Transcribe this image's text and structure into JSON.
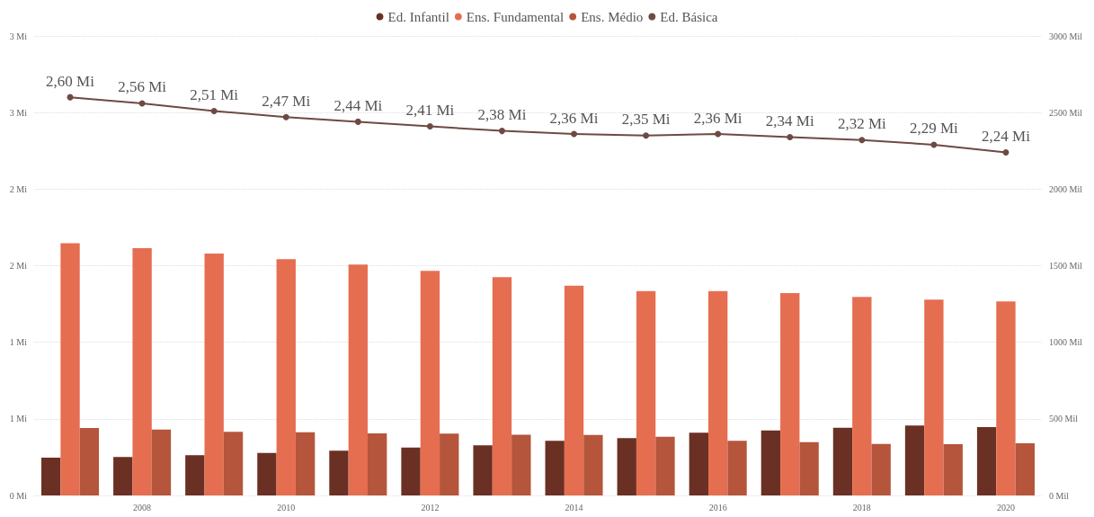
{
  "chart_data": {
    "type": "bar",
    "categories": [
      null,
      "2008",
      null,
      "2010",
      null,
      "2012",
      null,
      "2014",
      null,
      "2016",
      null,
      "2018",
      null,
      "2020"
    ],
    "series": [
      {
        "name": "Ed. Infantil",
        "color": "#6b3024",
        "axis": "y2",
        "values": [
          247,
          251,
          262,
          278,
          292,
          312,
          328,
          356,
          374,
          410,
          424,
          442,
          457,
          446
        ]
      },
      {
        "name": "Ens. Fundamental",
        "color": "#e56e50",
        "axis": "y2",
        "values": [
          1647,
          1615,
          1579,
          1543,
          1507,
          1466,
          1425,
          1370,
          1334,
          1334,
          1321,
          1296,
          1278,
          1267
        ]
      },
      {
        "name": "Ens. Médio",
        "color": "#b5553c",
        "axis": "y2",
        "values": [
          441,
          430,
          416,
          412,
          405,
          403,
          396,
          395,
          383,
          356,
          348,
          336,
          334,
          341
        ]
      },
      {
        "name": "Ed. Básica",
        "type": "line",
        "color": "#6e4a44",
        "axis": "y",
        "marker": "circle",
        "values": [
          2.6,
          2.56,
          2.51,
          2.47,
          2.44,
          2.41,
          2.38,
          2.36,
          2.35,
          2.36,
          2.34,
          2.32,
          2.29,
          2.24
        ],
        "value_labels": [
          "2,60 Mi",
          "2,56 Mi",
          "2,51 Mi",
          "2,47 Mi",
          "2,44 Mi",
          "2,41 Mi",
          "2,38 Mi",
          "2,36 Mi",
          "2,35 Mi",
          "2,36 Mi",
          "2,34 Mi",
          "2,32 Mi",
          "2,29 Mi",
          "2,24 Mi"
        ]
      }
    ],
    "ylim": [
      0,
      3
    ],
    "yticks": [
      {
        "value": 0,
        "label": "0 Mi"
      },
      {
        "value": 0.5,
        "label": "1 Mi"
      },
      {
        "value": 1,
        "label": "1 Mi"
      },
      {
        "value": 1.5,
        "label": "2 Mi"
      },
      {
        "value": 2,
        "label": "2 Mi"
      },
      {
        "value": 2.5,
        "label": "3 Mi"
      },
      {
        "value": 3,
        "label": "3 Mi"
      }
    ],
    "y2lim": [
      0,
      3000
    ],
    "y2ticks": [
      {
        "value": 0,
        "label": "0 Mil"
      },
      {
        "value": 500,
        "label": "500 Mil"
      },
      {
        "value": 1000,
        "label": "1000 Mil"
      },
      {
        "value": 1500,
        "label": "1500 Mil"
      },
      {
        "value": 2000,
        "label": "2000 Mil"
      },
      {
        "value": 2500,
        "label": "2500 Mil"
      },
      {
        "value": 3000,
        "label": "3000 Mil"
      }
    ],
    "grid": "y",
    "legend": "top"
  }
}
